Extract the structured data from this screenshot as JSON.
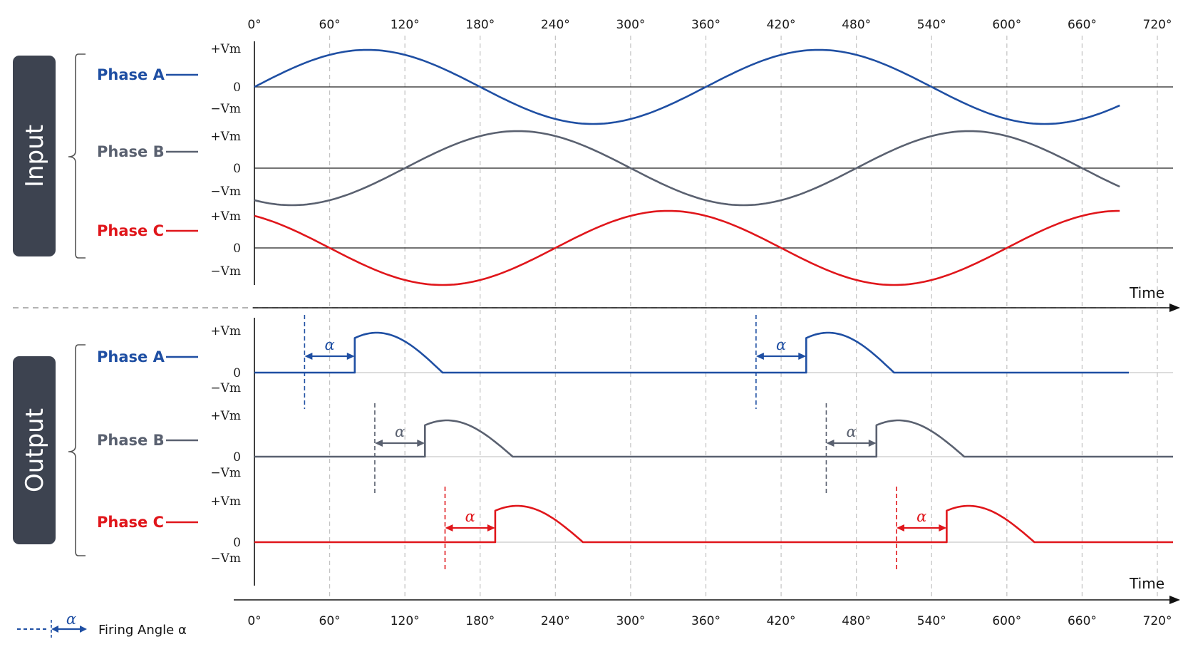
{
  "colors": {
    "phase_a": "#1f4fa3",
    "phase_b": "#5a6170",
    "phase_c": "#e0161b",
    "panel": "#3d4350",
    "axis": "#111111",
    "grid": "#bdbdbd"
  },
  "degree_ticks": [
    "0°",
    "60°",
    "120°",
    "180°",
    "240°",
    "300°",
    "360°",
    "420°",
    "480°",
    "540°",
    "600°",
    "660°",
    "720°"
  ],
  "sections": {
    "input": "Input",
    "output": "Output"
  },
  "axis": {
    "time_label": "Time"
  },
  "levels": {
    "pos": "+Vm",
    "zero": "0",
    "neg": "−Vm"
  },
  "input_phases": [
    {
      "name": "Phase A",
      "color": "#1f4fa3",
      "phase_shift_deg": 0
    },
    {
      "name": "Phase B",
      "color": "#5a6170",
      "phase_shift_deg": -120
    },
    {
      "name": "Phase C",
      "color": "#e0161b",
      "phase_shift_deg": 120
    }
  ],
  "output_phases": [
    {
      "name": "Phase A",
      "color": "#1f4fa3",
      "trigger_deg": [
        40,
        400
      ],
      "conduct_start_deg": [
        80,
        440
      ],
      "conduct_end_deg": [
        150,
        510
      ]
    },
    {
      "name": "Phase B",
      "color": "#5a6170",
      "trigger_deg": [
        96,
        456
      ],
      "conduct_start_deg": [
        136,
        496
      ],
      "conduct_end_deg": [
        206,
        566
      ]
    },
    {
      "name": "Phase C",
      "color": "#e0161b",
      "trigger_deg": [
        152,
        512
      ],
      "conduct_start_deg": [
        192,
        552
      ],
      "conduct_end_deg": [
        262,
        622
      ]
    }
  ],
  "alpha_symbol": "α",
  "legend": {
    "label": "Firing Angle α",
    "symbol": "α"
  }
}
